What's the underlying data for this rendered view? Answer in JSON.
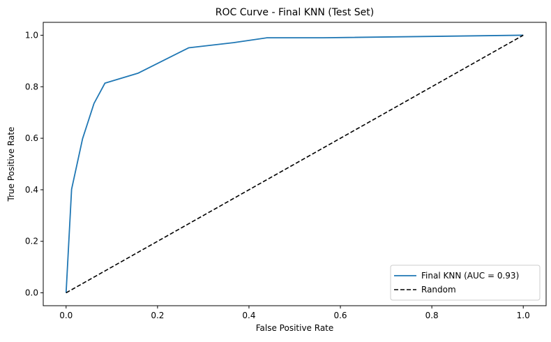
{
  "chart_data": {
    "type": "line",
    "title": "ROC Curve - Final KNN (Test Set)",
    "xlabel": "False Positive Rate",
    "ylabel": "True Positive Rate",
    "xlim": [
      -0.05,
      1.05
    ],
    "ylim": [
      -0.05,
      1.05
    ],
    "xticks": [
      0.0,
      0.2,
      0.4,
      0.6,
      0.8,
      1.0
    ],
    "yticks": [
      0.0,
      0.2,
      0.4,
      0.6,
      0.8,
      1.0
    ],
    "xtick_labels": [
      "0.0",
      "0.2",
      "0.4",
      "0.6",
      "0.8",
      "1.0"
    ],
    "ytick_labels": [
      "0.0",
      "0.2",
      "0.4",
      "0.6",
      "0.8",
      "1.0"
    ],
    "grid": false,
    "legend_position": "lower-right",
    "series": [
      {
        "name": "Final KNN (AUC = 0.93)",
        "color": "#1f77b4",
        "style": "solid",
        "x": [
          0.0,
          0.012,
          0.036,
          0.061,
          0.085,
          0.158,
          0.268,
          0.366,
          0.439,
          0.561,
          1.0
        ],
        "y": [
          0.0,
          0.402,
          0.598,
          0.735,
          0.814,
          0.853,
          0.951,
          0.971,
          0.99,
          0.99,
          1.0
        ]
      },
      {
        "name": "Random",
        "color": "#000000",
        "style": "dashed",
        "x": [
          0.0,
          1.0
        ],
        "y": [
          0.0,
          1.0
        ]
      }
    ]
  }
}
